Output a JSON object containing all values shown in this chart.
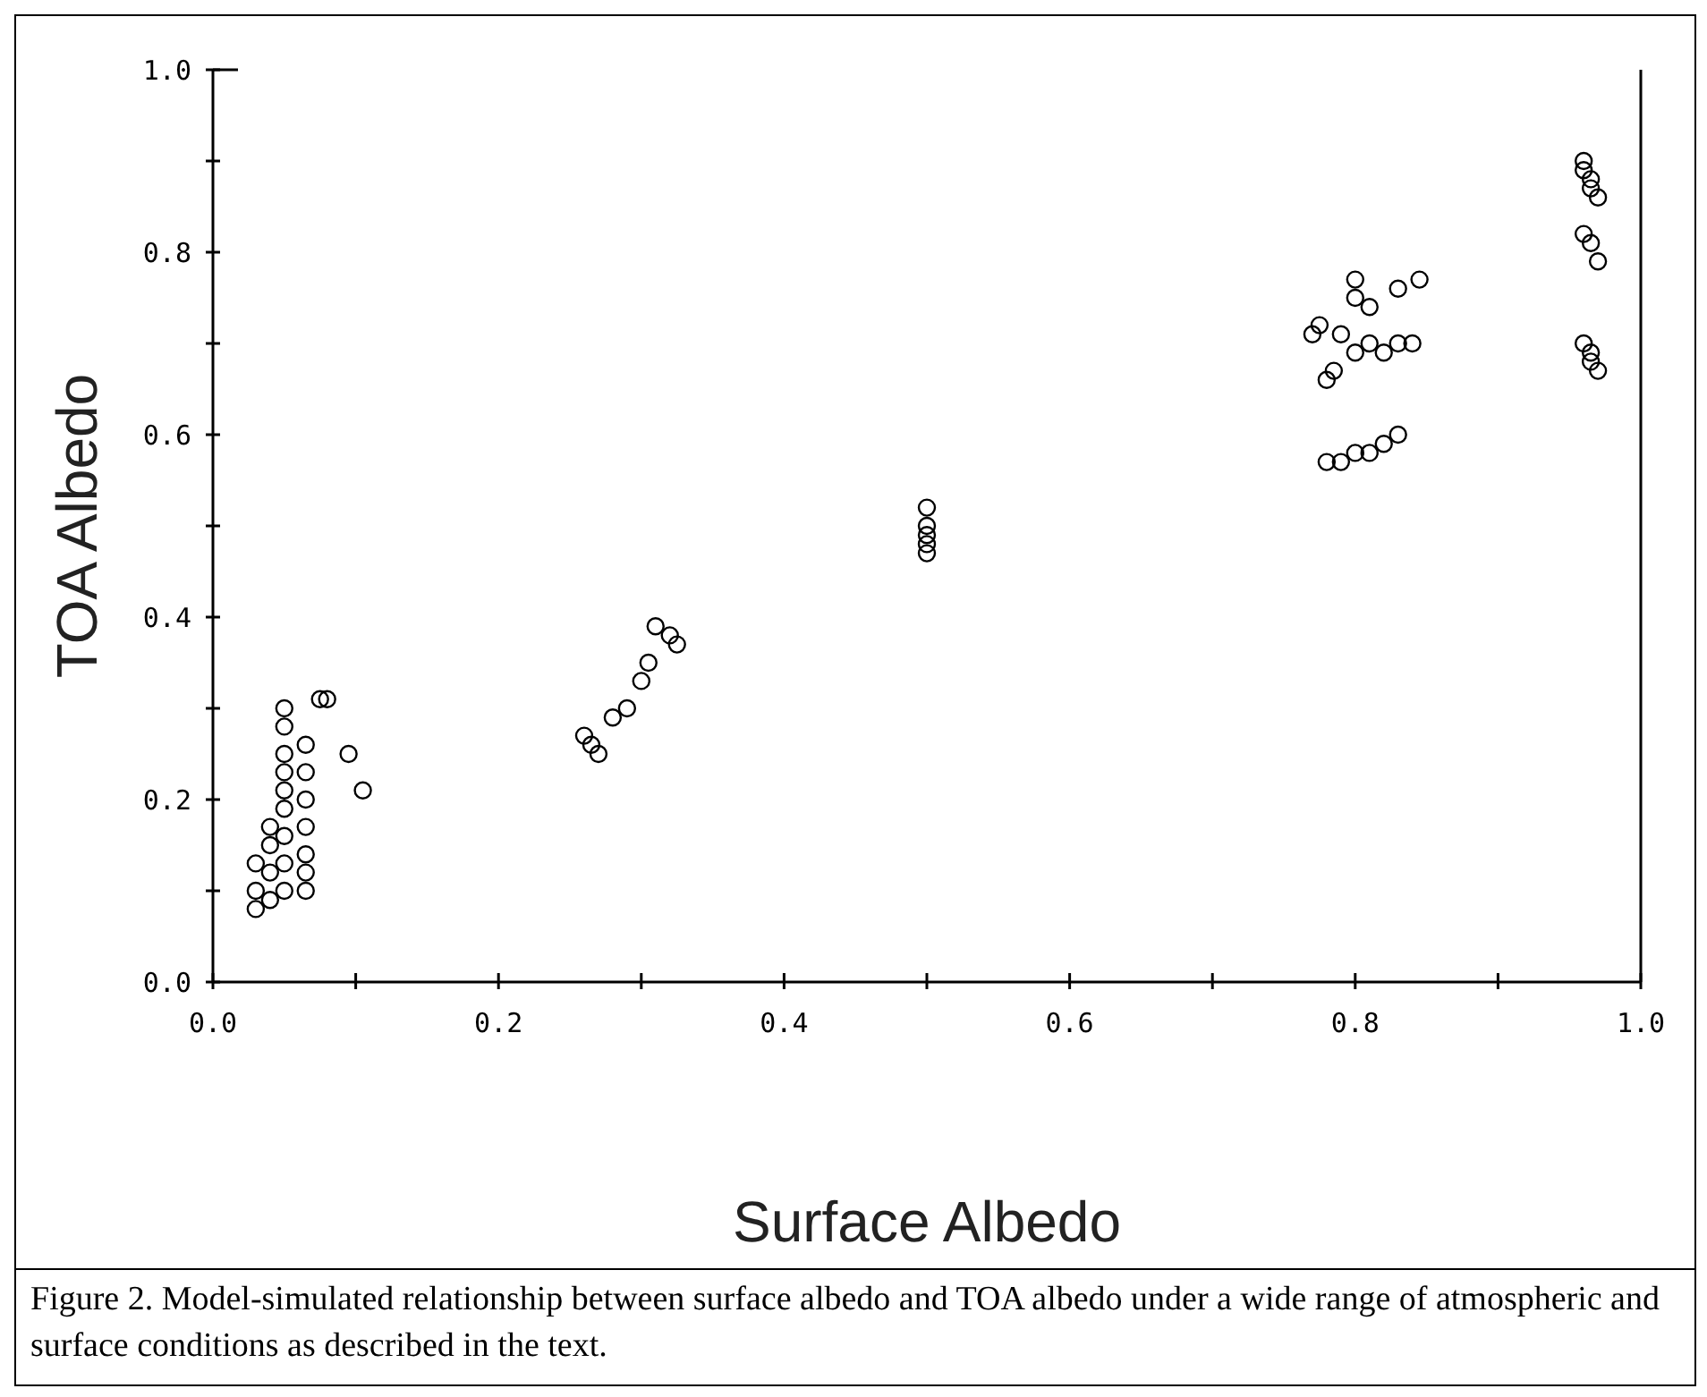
{
  "chart_data": {
    "type": "scatter",
    "xlabel": "Surface Albedo",
    "ylabel": "TOA Albedo",
    "xlim": [
      0,
      1
    ],
    "ylim": [
      0,
      1
    ],
    "xticks": [
      {
        "value": 0,
        "label": "0.0"
      },
      {
        "value": 0.1,
        "label": null
      },
      0.2,
      {
        "value": 0.3,
        "label": null
      },
      0.4,
      {
        "value": 0.5,
        "label": null
      },
      0.6,
      {
        "value": 0.7,
        "label": null
      },
      0.8,
      {
        "value": 0.9,
        "label": null
      },
      {
        "value": 1,
        "label": "1.0"
      }
    ],
    "yticks": [
      {
        "value": 0,
        "label": "0.0"
      },
      {
        "value": 0.1,
        "label": null
      },
      0.2,
      {
        "value": 0.3,
        "label": null
      },
      0.4,
      {
        "value": 0.5,
        "label": null
      },
      0.6,
      {
        "value": 0.7,
        "label": null
      },
      0.8,
      {
        "value": 0.9,
        "label": null
      },
      {
        "value": 1,
        "label": "1.0"
      }
    ],
    "grid": false,
    "marker": "circle",
    "annotations": [
      "Figure 2. Model-simulated relationship between surface albedo and TOA albedo under a wide range of atmospheric and surface conditions as described in the text."
    ],
    "series": [
      {
        "color": "#000000",
        "x": [
          0.03,
          0.03,
          0.03,
          0.04,
          0.04,
          0.04,
          0.04,
          0.05,
          0.05,
          0.05,
          0.05,
          0.05,
          0.05,
          0.05,
          0.05,
          0.05,
          0.065,
          0.065,
          0.065,
          0.065,
          0.065,
          0.065,
          0.065,
          0.075,
          0.08,
          0.095,
          0.105,
          0.26,
          0.265,
          0.27,
          0.28,
          0.29,
          0.3,
          0.305,
          0.31,
          0.32,
          0.325,
          0.5,
          0.5,
          0.5,
          0.5,
          0.5,
          0.77,
          0.775,
          0.78,
          0.785,
          0.79,
          0.8,
          0.8,
          0.8,
          0.81,
          0.81,
          0.82,
          0.83,
          0.83,
          0.845,
          0.84,
          0.78,
          0.79,
          0.8,
          0.81,
          0.82,
          0.83,
          0.96,
          0.96,
          0.965,
          0.965,
          0.97,
          0.96,
          0.965,
          0.97,
          0.96,
          0.965,
          0.965,
          0.97
        ],
        "values": [
          0.08,
          0.1,
          0.13,
          0.09,
          0.12,
          0.15,
          0.17,
          0.1,
          0.13,
          0.16,
          0.19,
          0.21,
          0.23,
          0.25,
          0.28,
          0.3,
          0.1,
          0.12,
          0.14,
          0.17,
          0.2,
          0.23,
          0.26,
          0.31,
          0.31,
          0.25,
          0.21,
          0.27,
          0.26,
          0.25,
          0.29,
          0.3,
          0.33,
          0.35,
          0.39,
          0.38,
          0.37,
          0.47,
          0.48,
          0.49,
          0.5,
          0.52,
          0.71,
          0.72,
          0.66,
          0.67,
          0.71,
          0.75,
          0.77,
          0.69,
          0.7,
          0.74,
          0.69,
          0.7,
          0.76,
          0.77,
          0.7,
          0.57,
          0.57,
          0.58,
          0.58,
          0.59,
          0.6,
          0.9,
          0.89,
          0.88,
          0.87,
          0.86,
          0.82,
          0.81,
          0.79,
          0.7,
          0.69,
          0.68,
          0.67
        ]
      }
    ]
  }
}
